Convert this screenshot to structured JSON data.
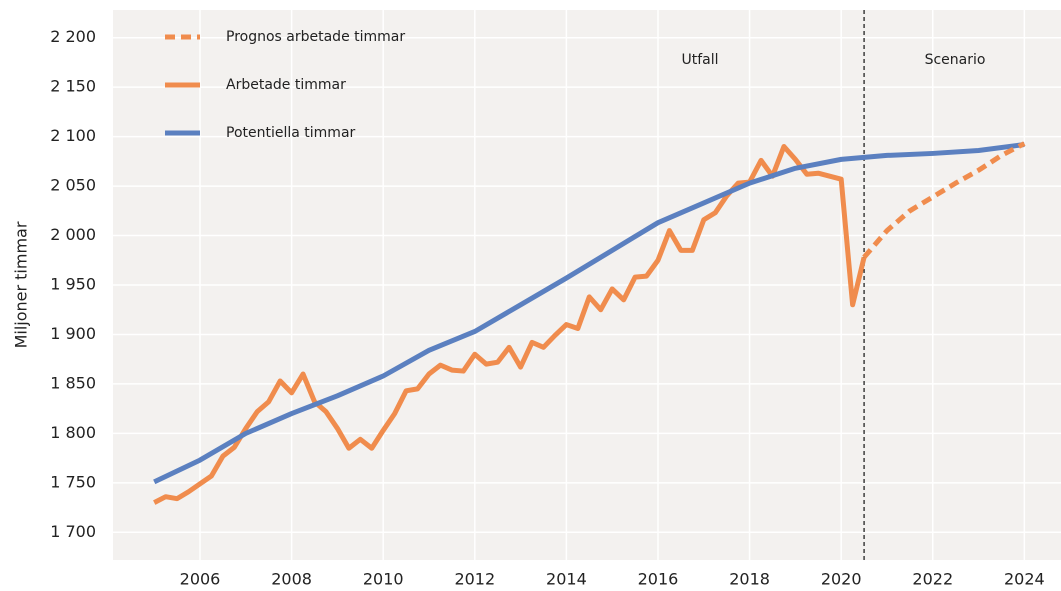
{
  "chart_data": {
    "type": "line",
    "y_label": "Miljoner timmar",
    "annotations": [
      "Utfall",
      "Scenario"
    ],
    "divider_x": 2020.5,
    "xlim": [
      2004.1,
      2024.8
    ],
    "xticks": [
      2006,
      2008,
      2010,
      2012,
      2014,
      2016,
      2018,
      2020,
      2022,
      2024
    ],
    "ylim": [
      1672,
      2228
    ],
    "yticks": [
      {
        "value": 1700,
        "label": "1 700"
      },
      {
        "value": 1750,
        "label": "1 750"
      },
      {
        "value": 1800,
        "label": "1 800"
      },
      {
        "value": 1850,
        "label": "1 850"
      },
      {
        "value": 1900,
        "label": "1 900"
      },
      {
        "value": 1950,
        "label": "1 950"
      },
      {
        "value": 2000,
        "label": "2 000"
      },
      {
        "value": 2050,
        "label": "2 050"
      },
      {
        "value": 2100,
        "label": "2 100"
      },
      {
        "value": 2150,
        "label": "2 150"
      },
      {
        "value": 2200,
        "label": "2 200"
      }
    ],
    "grid": true,
    "series": [
      {
        "name": "Prognos arbetade timmar",
        "color": "#f08c4d",
        "dashed": true,
        "x": [
          2020.5,
          2021,
          2021.5,
          2022,
          2022.5,
          2023,
          2023.5,
          2024
        ],
        "values": [
          1978,
          2005,
          2025,
          2039,
          2053,
          2066,
          2081,
          2093
        ]
      },
      {
        "name": "Arbetade timmar",
        "color": "#f08c4d",
        "x": [
          2005,
          2005.25,
          2005.5,
          2005.75,
          2006,
          2006.25,
          2006.5,
          2006.75,
          2007,
          2007.25,
          2007.5,
          2007.75,
          2008,
          2008.25,
          2008.5,
          2008.75,
          2009,
          2009.25,
          2009.5,
          2009.75,
          2010,
          2010.25,
          2010.5,
          2010.75,
          2011,
          2011.25,
          2011.5,
          2011.75,
          2012,
          2012.25,
          2012.5,
          2012.75,
          2013,
          2013.25,
          2013.5,
          2013.75,
          2014,
          2014.25,
          2014.5,
          2014.75,
          2015,
          2015.25,
          2015.5,
          2015.75,
          2016,
          2016.25,
          2016.5,
          2016.75,
          2017,
          2017.25,
          2017.5,
          2017.75,
          2018,
          2018.25,
          2018.5,
          2018.75,
          2019,
          2019.25,
          2019.5,
          2019.75,
          2020,
          2020.25,
          2020.5
        ],
        "values": [
          1730,
          1736,
          1734,
          1741,
          1749,
          1757,
          1777,
          1786,
          1805,
          1822,
          1832,
          1853,
          1841,
          1860,
          1832,
          1822,
          1805,
          1785,
          1794,
          1785,
          1803,
          1820,
          1843,
          1845,
          1860,
          1869,
          1864,
          1863,
          1880,
          1870,
          1872,
          1887,
          1867,
          1892,
          1887,
          1899,
          1910,
          1906,
          1938,
          1925,
          1946,
          1935,
          1958,
          1959,
          1975,
          2005,
          1985,
          1985,
          2016,
          2023,
          2040,
          2053,
          2054,
          2076,
          2060,
          2090,
          2077,
          2062,
          2063,
          2060,
          2057,
          1930,
          1978
        ]
      },
      {
        "name": "Potentiella timmar",
        "color": "#5b80c0",
        "x": [
          2005,
          2006,
          2007,
          2008,
          2009,
          2010,
          2011,
          2012,
          2013,
          2014,
          2015,
          2016,
          2016.5,
          2017,
          2018,
          2019,
          2020,
          2021,
          2022,
          2023,
          2024
        ],
        "values": [
          1751,
          1773,
          1800,
          1820,
          1838,
          1858,
          1884,
          1903,
          1930,
          1957,
          1985,
          2013,
          2023,
          2033,
          2053,
          2068,
          2077,
          2081,
          2083,
          2086,
          2092
        ]
      }
    ]
  }
}
